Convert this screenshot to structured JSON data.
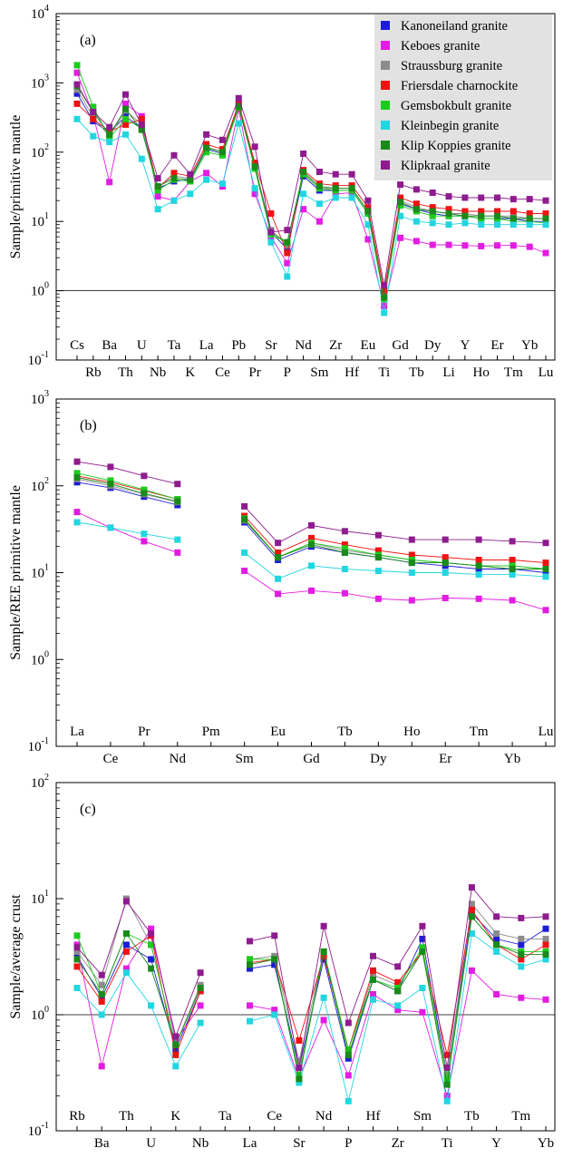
{
  "colors": {
    "Kanoneiland granite": "#1c1cd6",
    "Keboes granite": "#e21ce2",
    "Straussburg granite": "#8c8c8c",
    "Friersdale charnockite": "#f01212",
    "Gemsbokbult granite": "#1ccc1c",
    "Kleinbegin granite": "#22d6e0",
    "Klip Koppies granite": "#1a8a1a",
    "Klipkraal granite": "#8e1c8e"
  },
  "legend": [
    "Kanoneiland granite",
    "Keboes granite",
    "Straussburg granite",
    "Friersdale charnockite",
    "Gemsbokbult granite",
    "Kleinbegin granite",
    "Klip Koppies granite",
    "Klipkraal granite"
  ],
  "chart_data": [
    {
      "type": "line",
      "panel_label": "(a)",
      "ylabel": "Sample/primitive mantle",
      "yscale": "log",
      "ylim": [
        0.1,
        10000
      ],
      "ytick_labels": [
        {
          "base": "10",
          "exp": "-1"
        },
        {
          "base": "10",
          "exp": "0"
        },
        {
          "base": "10",
          "exp": "1"
        },
        {
          "base": "10",
          "exp": "2"
        },
        {
          "base": "10",
          "exp": "3"
        },
        {
          "base": "10",
          "exp": "4"
        }
      ],
      "reference_line": 1,
      "legend_position": "top-right",
      "categories": [
        "Cs",
        "Rb",
        "Ba",
        "Th",
        "U",
        "Nb",
        "Ta",
        "K",
        "La",
        "Ce",
        "Pb",
        "Pr",
        "Sr",
        "P",
        "Nd",
        "Sm",
        "Zr",
        "Hf",
        "Eu",
        "Ti",
        "Gd",
        "Tb",
        "Dy",
        "Li",
        "Y",
        "Ho",
        "Er",
        "Tm",
        "Yb",
        "Lu"
      ],
      "series": [
        {
          "name": "Kanoneiland granite",
          "values": [
            700,
            280,
            190,
            330,
            220,
            30,
            38,
            40,
            110,
            95,
            450,
            60,
            7,
            4,
            45,
            28,
            28,
            28,
            13,
            0.8,
            18,
            15,
            13,
            12,
            12,
            11,
            11,
            11,
            10,
            10
          ]
        },
        {
          "name": "Keboes granite",
          "values": [
            1400,
            350,
            37,
            500,
            330,
            23,
            20,
            38,
            50,
            32,
            420,
            25,
            6,
            2.5,
            15,
            10,
            25,
            26,
            5.5,
            0.6,
            5.8,
            5.2,
            4.6,
            4.6,
            4.5,
            4.4,
            4.5,
            4.5,
            4.3,
            3.5
          ]
        },
        {
          "name": "Straussburg granite",
          "values": [
            800,
            320,
            170,
            400,
            250,
            32,
            45,
            42,
            120,
            100,
            480,
            65,
            7.5,
            4.5,
            50,
            30,
            30,
            30,
            14,
            0.85,
            20,
            16,
            14,
            13,
            13,
            12,
            12,
            12,
            11,
            11
          ]
        },
        {
          "name": "Friersdale charnockite",
          "values": [
            500,
            300,
            200,
            250,
            300,
            30,
            50,
            45,
            130,
            110,
            500,
            70,
            13,
            3.5,
            55,
            35,
            33,
            33,
            16,
            1.0,
            22,
            18,
            16,
            15,
            14,
            14,
            14,
            14,
            13,
            13
          ]
        },
        {
          "name": "Gemsbokbult granite",
          "values": [
            1800,
            450,
            160,
            300,
            220,
            28,
            40,
            38,
            100,
            90,
            440,
            58,
            6.5,
            5,
            48,
            30,
            28,
            28,
            13,
            0.75,
            17,
            14,
            12,
            12,
            12,
            11,
            11,
            10,
            10,
            9.5
          ]
        },
        {
          "name": "Kleinbegin granite",
          "values": [
            300,
            170,
            140,
            180,
            80,
            15,
            20,
            25,
            40,
            35,
            260,
            30,
            5,
            1.6,
            25,
            18,
            22,
            22,
            9,
            0.48,
            12,
            10,
            9.5,
            9,
            9.5,
            9,
            9,
            9,
            9,
            9
          ]
        },
        {
          "name": "Klip Koppies granite",
          "values": [
            900,
            380,
            180,
            420,
            210,
            32,
            42,
            40,
            115,
            100,
            460,
            62,
            7,
            5,
            52,
            32,
            30,
            30,
            14,
            0.8,
            19,
            15,
            14,
            13,
            12,
            12,
            12,
            11,
            11,
            11
          ]
        },
        {
          "name": "Klipkraal granite",
          "values": [
            950,
            380,
            230,
            680,
            250,
            42,
            90,
            48,
            180,
            150,
            600,
            120,
            7,
            7.5,
            95,
            52,
            48,
            48,
            20,
            1.2,
            34,
            29,
            26,
            23,
            22,
            22,
            22,
            21,
            21,
            20
          ]
        }
      ]
    },
    {
      "type": "line",
      "panel_label": "(b)",
      "ylabel": "Sample/REE primitive mantle",
      "yscale": "log",
      "ylim": [
        0.1,
        1000
      ],
      "ytick_labels": [
        {
          "base": "10",
          "exp": "-1"
        },
        {
          "base": "10",
          "exp": "0"
        },
        {
          "base": "10",
          "exp": "1"
        },
        {
          "base": "10",
          "exp": "2"
        },
        {
          "base": "10",
          "exp": "3"
        }
      ],
      "categories": [
        "La",
        "Ce",
        "Pr",
        "Nd",
        "Pm",
        "Sm",
        "Eu",
        "Gd",
        "Tb",
        "Dy",
        "Ho",
        "Er",
        "Tm",
        "Yb",
        "Lu"
      ],
      "series": [
        {
          "name": "Kanoneiland granite",
          "values": [
            110,
            95,
            75,
            60,
            null,
            38,
            14,
            20,
            17,
            15,
            13,
            12,
            11,
            11,
            10
          ]
        },
        {
          "name": "Keboes granite",
          "values": [
            50,
            33,
            23,
            17,
            null,
            10.5,
            5.7,
            6.2,
            5.8,
            5,
            4.8,
            5.1,
            5,
            4.8,
            3.7
          ]
        },
        {
          "name": "Straussburg granite",
          "values": [
            120,
            100,
            80,
            65,
            null,
            40,
            15,
            22,
            18,
            16,
            14,
            13,
            12,
            12,
            11
          ]
        },
        {
          "name": "Friersdale charnockite",
          "values": [
            130,
            110,
            88,
            70,
            null,
            45,
            17,
            25,
            21,
            18,
            16,
            15,
            14,
            14,
            13
          ]
        },
        {
          "name": "Gemsbokbult granite",
          "values": [
            140,
            115,
            90,
            70,
            null,
            42,
            15,
            22,
            19,
            16,
            14,
            13,
            12,
            12,
            11
          ]
        },
        {
          "name": "Kleinbegin granite",
          "values": [
            38,
            33,
            28,
            24,
            null,
            17,
            8.5,
            12,
            11,
            10.5,
            10,
            10,
            9.5,
            9.5,
            9
          ]
        },
        {
          "name": "Klip Koppies granite",
          "values": [
            125,
            105,
            82,
            66,
            null,
            41,
            15,
            21,
            17,
            15,
            13,
            13,
            12,
            11,
            11
          ]
        },
        {
          "name": "Klipkraal granite",
          "values": [
            190,
            165,
            130,
            105,
            null,
            58,
            22,
            35,
            30,
            27,
            24,
            24,
            24,
            23,
            22
          ]
        }
      ]
    },
    {
      "type": "line",
      "panel_label": "(c)",
      "ylabel": "Sample/average crust",
      "yscale": "log",
      "ylim": [
        0.1,
        100
      ],
      "ytick_labels": [
        {
          "base": "10",
          "exp": "-1"
        },
        {
          "base": "10",
          "exp": "0"
        },
        {
          "base": "10",
          "exp": "1"
        },
        {
          "base": "10",
          "exp": "2"
        }
      ],
      "reference_line": 1,
      "categories": [
        "Rb",
        "Ba",
        "Th",
        "U",
        "K",
        "Nb",
        "Ta",
        "La",
        "Ce",
        "Sr",
        "Nd",
        "P",
        "Hf",
        "Zr",
        "Sm",
        "Ti",
        "Tb",
        "Y",
        "Tm",
        "Yb"
      ],
      "series": [
        {
          "name": "Kanoneiland granite",
          "values": [
            3.2,
            1.4,
            4,
            3,
            0.5,
            1.6,
            null,
            2.5,
            2.7,
            0.35,
            3,
            0.42,
            2,
            1.6,
            4.5,
            0.3,
            7.5,
            4.5,
            4,
            5.5
          ]
        },
        {
          "name": "Keboes granite",
          "values": [
            4,
            0.36,
            2.5,
            5.5,
            0.6,
            1.2,
            null,
            1.2,
            1.1,
            0.28,
            0.9,
            0.3,
            1.5,
            1.1,
            1.05,
            0.2,
            2.4,
            1.5,
            1.4,
            1.35
          ]
        },
        {
          "name": "Straussburg granite",
          "values": [
            3.5,
            1.8,
            10,
            4,
            0.55,
            1.8,
            null,
            3,
            3.2,
            0.4,
            3.5,
            0.5,
            2.2,
            1.8,
            3.5,
            0.3,
            9,
            5,
            4.5,
            4.5
          ]
        },
        {
          "name": "Friersdale charnockite",
          "values": [
            2.6,
            1.3,
            3.5,
            4.8,
            0.45,
            1.6,
            null,
            2.8,
            3,
            0.6,
            3.2,
            0.5,
            2.4,
            1.9,
            3.5,
            0.45,
            8,
            4,
            3,
            4
          ]
        },
        {
          "name": "Gemsbokbult granite",
          "values": [
            4.8,
            1.5,
            5,
            4,
            0.55,
            1.7,
            null,
            3,
            3,
            0.3,
            3.5,
            0.5,
            2,
            1.7,
            3.8,
            0.28,
            7,
            4,
            3.5,
            3.5
          ]
        },
        {
          "name": "Kleinbegin granite",
          "values": [
            1.7,
            1,
            2.3,
            1.2,
            0.36,
            0.85,
            null,
            0.88,
            1,
            0.26,
            1.4,
            0.18,
            1.35,
            1.2,
            1.7,
            0.18,
            5,
            3.5,
            2.6,
            3
          ]
        },
        {
          "name": "Klip Koppies granite",
          "values": [
            3,
            1.5,
            5,
            2.5,
            0.55,
            1.7,
            null,
            2.7,
            3,
            0.28,
            3.5,
            0.45,
            2,
            1.6,
            3.5,
            0.25,
            7,
            4,
            3.3,
            3.3
          ]
        },
        {
          "name": "Klipkraal granite",
          "values": [
            3.8,
            2.2,
            9.5,
            5,
            0.65,
            2.3,
            null,
            4.3,
            4.8,
            0.35,
            5.8,
            0.85,
            3.2,
            2.6,
            5.8,
            0.35,
            12.5,
            7,
            6.8,
            7
          ]
        }
      ]
    }
  ]
}
